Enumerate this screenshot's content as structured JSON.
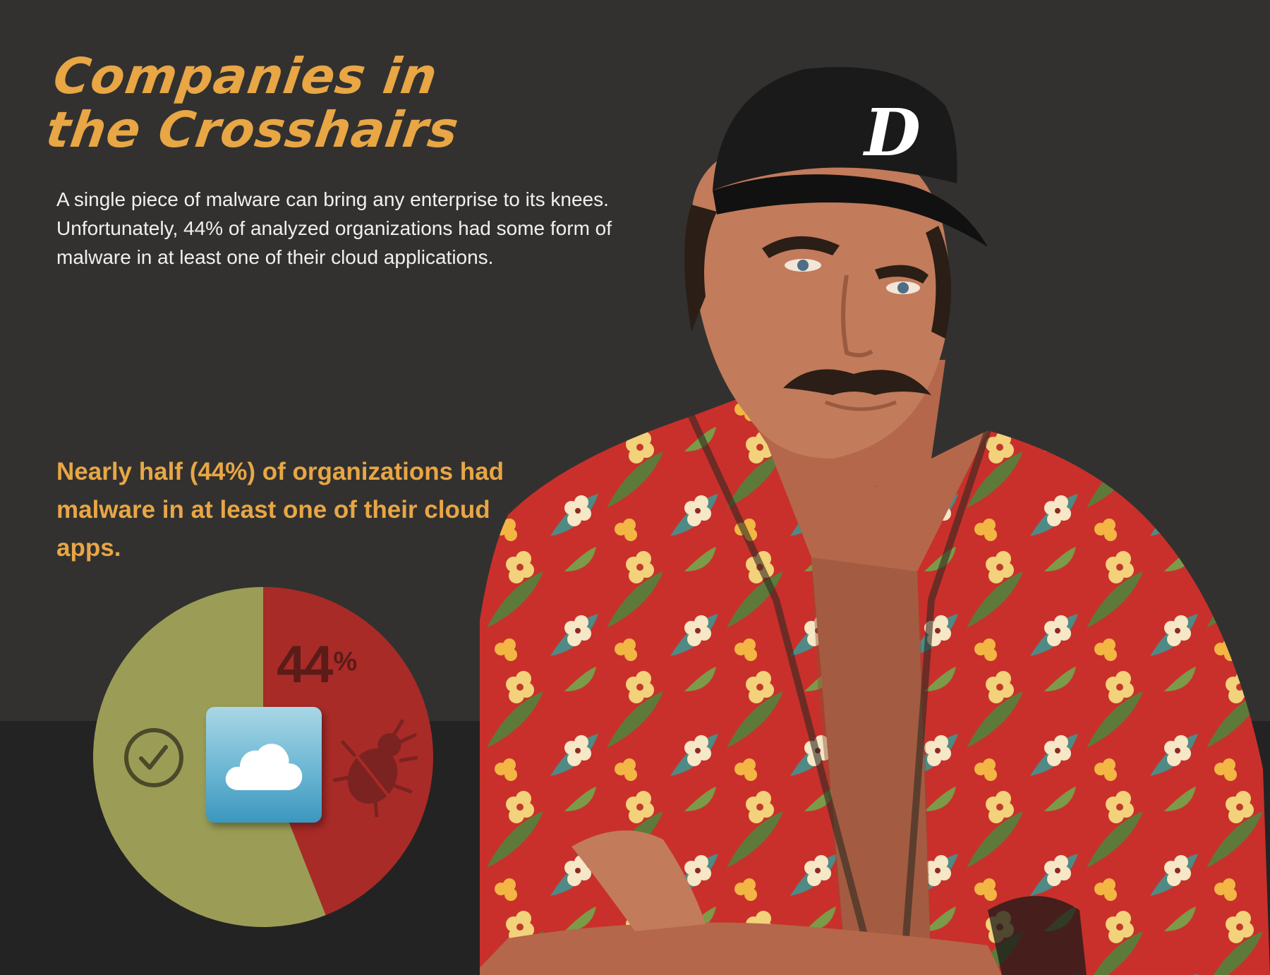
{
  "header": {
    "title_line1": "Companies in",
    "title_line2": "the Crosshairs"
  },
  "intro": {
    "text": "A single piece of malware can bring any enterprise to its knees. Unfortunately, 44% of analyzed organizations had some form of malware in at least one of their cloud applications."
  },
  "callout": {
    "text": "Nearly half (44%) of organizations had malware in at least one of their cloud apps."
  },
  "chart_data": {
    "type": "pie",
    "title": "",
    "slices": [
      {
        "label": "44%",
        "value": 44,
        "color": "#A82B27"
      },
      {
        "label": "",
        "value": 56,
        "color": "#9B9D56"
      }
    ],
    "value_label": "44",
    "value_suffix": "%"
  },
  "icons": {
    "cloud": "cloud-icon",
    "check": "check-circle-icon",
    "bug": "bug-icon"
  },
  "illustration": {
    "description_name": "man-in-cap-and-floral-shirt",
    "colors": {
      "skin": "#C27B5B",
      "cap": "#1A1A1A",
      "shirt": "#C9302B",
      "hair": "#2A1E16"
    }
  }
}
